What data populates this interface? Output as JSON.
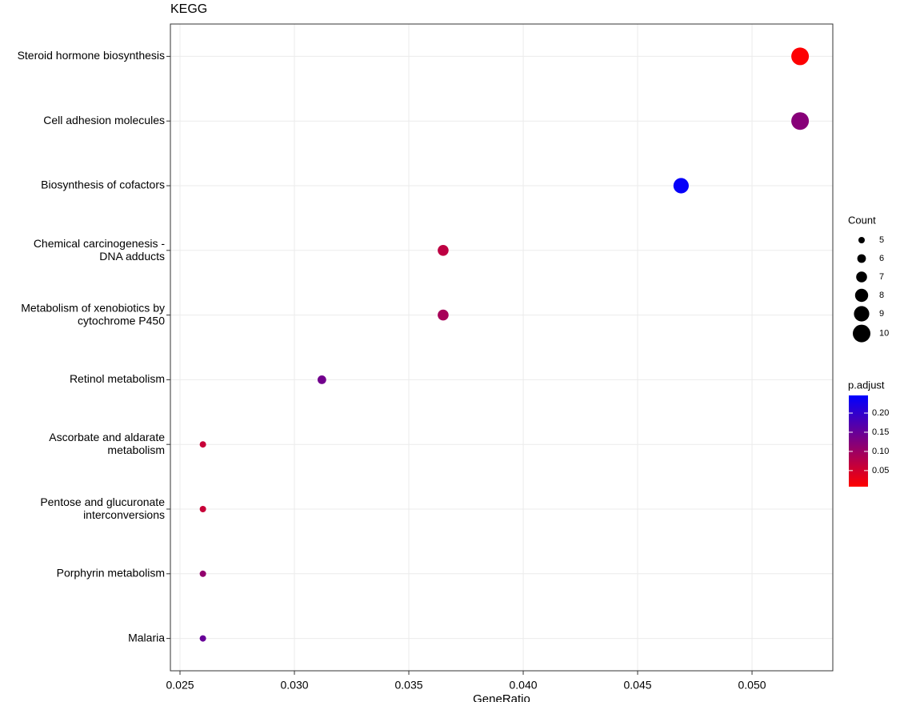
{
  "chart_data": {
    "type": "dot",
    "title": "KEGG",
    "x_label": "GeneRatio",
    "categories": [
      "Steroid hormone biosynthesis",
      "Cell adhesion molecules",
      "Biosynthesis of cofactors",
      "Chemical carcinogenesis -\nDNA adducts",
      "Metabolism of xenobiotics by\ncytochrome P450",
      "Retinol metabolism",
      "Ascorbate and aldarate\nmetabolism",
      "Pentose and glucuronate\ninterconversions",
      "Porphyrin metabolism",
      "Malaria"
    ],
    "values": [
      0.0521,
      0.0521,
      0.0469,
      0.0365,
      0.0365,
      0.0312,
      0.026,
      0.026,
      0.026,
      0.026
    ],
    "counts": [
      10,
      10,
      9,
      7,
      7,
      6,
      5,
      5,
      5,
      5
    ],
    "p_adjust": [
      0.01,
      0.12,
      0.24,
      0.07,
      0.09,
      0.14,
      0.06,
      0.06,
      0.11,
      0.15
    ],
    "xlim": [
      0.02458,
      0.05353
    ],
    "xticks": [
      0.025,
      {
        "value": 0.03,
        "label": "0.030"
      },
      0.035,
      {
        "value": 0.04,
        "label": "0.040"
      },
      0.045,
      {
        "value": 0.05,
        "label": "0.050"
      }
    ],
    "grid": true,
    "size_legend_title": "Count",
    "size_breaks": [
      5,
      6,
      7,
      8,
      9,
      10
    ],
    "color_legend_title": "p.adjust",
    "color_low": "#ff0000",
    "color_high": "#0000ff",
    "color_lim": [
      0.008,
      0.246
    ],
    "color_ticks": [
      0.05,
      {
        "value": 0.1,
        "label": "0.10"
      },
      0.15,
      {
        "value": 0.2,
        "label": "0.20"
      }
    ]
  }
}
